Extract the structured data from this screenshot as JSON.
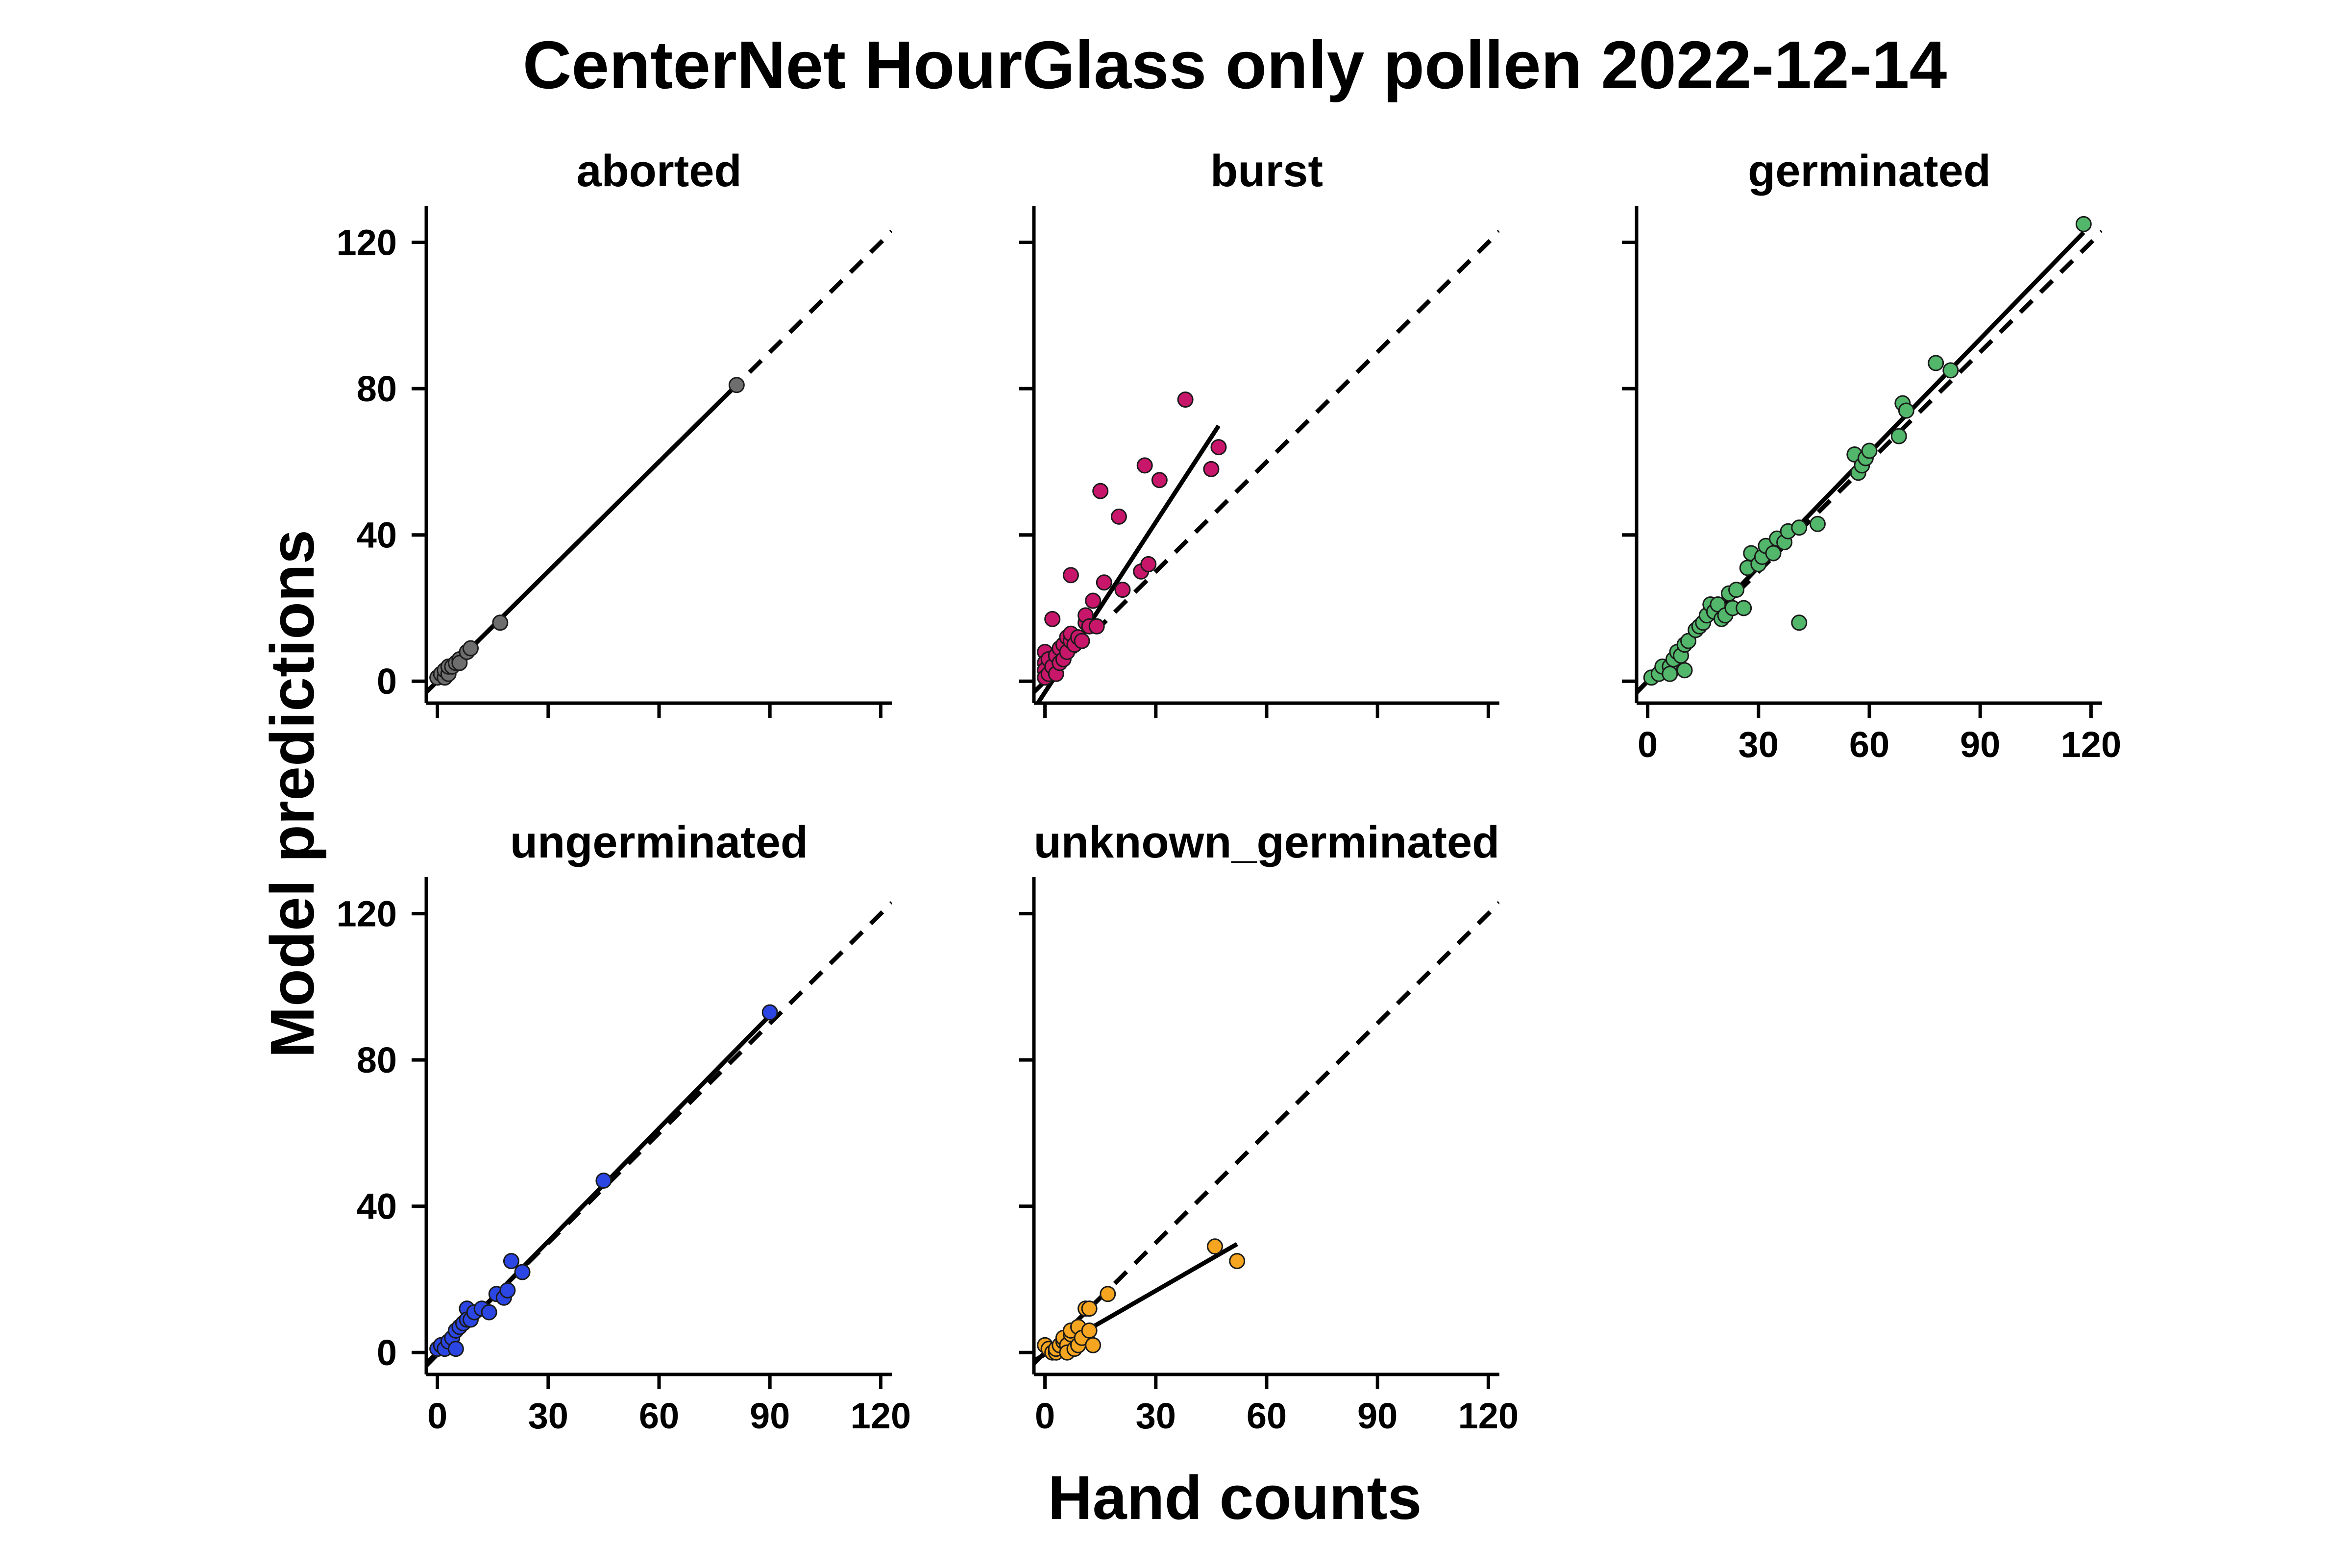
{
  "chart_data": {
    "type": "scatter",
    "title": "CenterNet HourGlass only pollen 2022-12-14",
    "xlabel": "Hand counts",
    "ylabel": "Model predictions",
    "xlim": [
      -3,
      123
    ],
    "ylim": [
      -6,
      130
    ],
    "x_ticks": [
      "0",
      "30",
      "60",
      "90",
      "120"
    ],
    "y_ticks": [
      "0",
      "40",
      "80",
      "120"
    ],
    "reference_line": "y = x (dashed)",
    "fit_line": "linear regression (solid)",
    "grid": false,
    "legend": "none",
    "panels": [
      {
        "label": "aborted",
        "color": "#6e6e6e",
        "show_x_tick_labels": false,
        "show_y_tick_labels": true,
        "fit": {
          "slope": 1.0,
          "intercept": 0,
          "x_range": [
            0,
            81
          ]
        },
        "points": [
          [
            0,
            1
          ],
          [
            1,
            2
          ],
          [
            2,
            1
          ],
          [
            2,
            3
          ],
          [
            3,
            2
          ],
          [
            3,
            4
          ],
          [
            4,
            4
          ],
          [
            5,
            5
          ],
          [
            6,
            6
          ],
          [
            6,
            5
          ],
          [
            8,
            8
          ],
          [
            9,
            9
          ],
          [
            17,
            16
          ],
          [
            81,
            81
          ]
        ]
      },
      {
        "label": "burst",
        "color": "#c8176a",
        "show_x_tick_labels": false,
        "show_y_tick_labels": false,
        "fit": {
          "slope": 1.55,
          "intercept": -3,
          "x_range": [
            0,
            47
          ]
        },
        "points": [
          [
            0,
            8
          ],
          [
            0,
            5
          ],
          [
            0,
            3
          ],
          [
            0,
            1
          ],
          [
            1,
            6
          ],
          [
            1,
            2
          ],
          [
            2,
            4
          ],
          [
            2,
            17
          ],
          [
            3,
            7
          ],
          [
            3,
            2
          ],
          [
            4,
            9
          ],
          [
            4,
            5
          ],
          [
            5,
            10
          ],
          [
            5,
            6
          ],
          [
            6,
            12
          ],
          [
            6,
            8
          ],
          [
            7,
            11
          ],
          [
            7,
            29
          ],
          [
            7,
            13
          ],
          [
            8,
            10
          ],
          [
            9,
            12
          ],
          [
            10,
            11
          ],
          [
            11,
            16
          ],
          [
            11,
            18
          ],
          [
            12,
            15
          ],
          [
            13,
            22
          ],
          [
            14,
            15
          ],
          [
            15,
            52
          ],
          [
            16,
            27
          ],
          [
            20,
            45
          ],
          [
            21,
            25
          ],
          [
            26,
            30
          ],
          [
            27,
            59
          ],
          [
            28,
            32
          ],
          [
            31,
            55
          ],
          [
            38,
            77
          ],
          [
            45,
            58
          ],
          [
            47,
            64
          ]
        ]
      },
      {
        "label": "germinated",
        "color": "#52b76b",
        "show_x_tick_labels": true,
        "show_y_tick_labels": false,
        "fit": {
          "slope": 1.04,
          "intercept": 0,
          "x_range": [
            0,
            118
          ]
        },
        "points": [
          [
            1,
            1
          ],
          [
            3,
            2
          ],
          [
            4,
            4
          ],
          [
            6,
            4
          ],
          [
            6,
            2
          ],
          [
            7,
            6
          ],
          [
            8,
            8
          ],
          [
            9,
            7
          ],
          [
            10,
            3
          ],
          [
            10,
            10
          ],
          [
            11,
            11
          ],
          [
            13,
            14
          ],
          [
            14,
            15
          ],
          [
            15,
            16
          ],
          [
            16,
            18
          ],
          [
            17,
            21
          ],
          [
            18,
            19
          ],
          [
            19,
            21
          ],
          [
            20,
            17
          ],
          [
            21,
            18
          ],
          [
            22,
            24
          ],
          [
            23,
            20
          ],
          [
            24,
            25
          ],
          [
            26,
            20
          ],
          [
            27,
            31
          ],
          [
            28,
            35
          ],
          [
            30,
            32
          ],
          [
            31,
            34
          ],
          [
            32,
            37
          ],
          [
            34,
            35
          ],
          [
            35,
            39
          ],
          [
            37,
            38
          ],
          [
            38,
            41
          ],
          [
            41,
            16
          ],
          [
            41,
            42
          ],
          [
            46,
            43
          ],
          [
            56,
            62
          ],
          [
            57,
            57
          ],
          [
            58,
            59
          ],
          [
            59,
            61
          ],
          [
            60,
            63
          ],
          [
            68,
            67
          ],
          [
            69,
            76
          ],
          [
            70,
            74
          ],
          [
            78,
            87
          ],
          [
            82,
            85
          ],
          [
            118,
            125
          ]
        ]
      },
      {
        "label": "ungerminated",
        "color": "#2b46e2",
        "show_x_tick_labels": true,
        "show_y_tick_labels": true,
        "fit": {
          "slope": 1.03,
          "intercept": -0.5,
          "x_range": [
            0,
            90
          ]
        },
        "points": [
          [
            0,
            1
          ],
          [
            1,
            2
          ],
          [
            2,
            1
          ],
          [
            3,
            3
          ],
          [
            4,
            4
          ],
          [
            5,
            1
          ],
          [
            5,
            6
          ],
          [
            6,
            7
          ],
          [
            7,
            8
          ],
          [
            8,
            12
          ],
          [
            8,
            9
          ],
          [
            9,
            9
          ],
          [
            10,
            11
          ],
          [
            12,
            12
          ],
          [
            14,
            11
          ],
          [
            16,
            16
          ],
          [
            18,
            15
          ],
          [
            19,
            17
          ],
          [
            20,
            25
          ],
          [
            23,
            22
          ],
          [
            45,
            47
          ],
          [
            90,
            93
          ]
        ]
      },
      {
        "label": "unknown_germinated",
        "color": "#f5a51f",
        "show_x_tick_labels": true,
        "show_y_tick_labels": false,
        "fit": {
          "slope": 0.58,
          "intercept": -0.5,
          "x_range": [
            0,
            52
          ]
        },
        "points": [
          [
            0,
            2
          ],
          [
            1,
            1
          ],
          [
            2,
            0
          ],
          [
            3,
            0
          ],
          [
            3,
            1
          ],
          [
            4,
            2
          ],
          [
            5,
            3
          ],
          [
            5,
            4
          ],
          [
            6,
            2
          ],
          [
            6,
            0
          ],
          [
            7,
            5
          ],
          [
            7,
            6
          ],
          [
            8,
            1
          ],
          [
            9,
            7
          ],
          [
            9,
            2
          ],
          [
            10,
            4
          ],
          [
            11,
            12
          ],
          [
            12,
            12
          ],
          [
            12,
            6
          ],
          [
            13,
            2
          ],
          [
            17,
            16
          ],
          [
            46,
            29
          ],
          [
            52,
            25
          ]
        ]
      }
    ]
  }
}
